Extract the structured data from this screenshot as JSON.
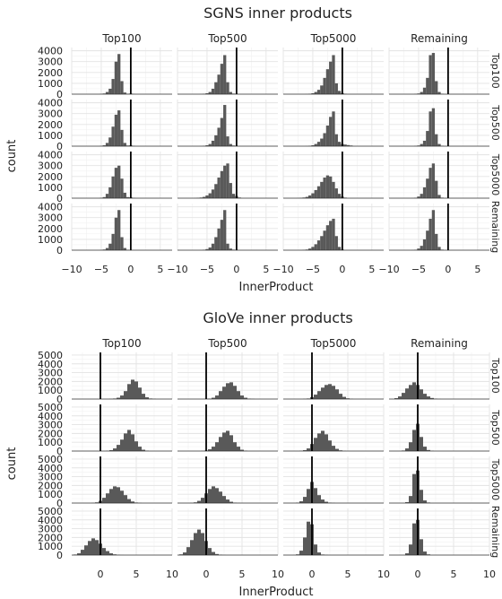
{
  "chart_data": [
    {
      "type": "bar",
      "title": "SGNS inner products",
      "xlabel": "InnerProduct",
      "ylabel": "count",
      "xlim": [
        -10,
        7
      ],
      "ylim": [
        0,
        4300
      ],
      "xticks": [
        -10,
        -5,
        0,
        5
      ],
      "yticks": [
        0,
        1000,
        2000,
        3000,
        4000
      ],
      "bin_width": 0.5,
      "vline": 0,
      "col_facets": [
        "Top100",
        "Top500",
        "Top5000",
        "Remaining"
      ],
      "row_facets": [
        "Top100",
        "Top500",
        "Top5000",
        "Remaining"
      ],
      "panels": [
        [
          {
            "centers": [
              -5,
              -4.5,
              -4,
              -3.5,
              -3,
              -2.5,
              -2,
              -1.5,
              -1,
              -0.5,
              0,
              0.5
            ],
            "values": [
              20,
              60,
              200,
              500,
              1400,
              3000,
              3700,
              1200,
              150,
              40,
              60,
              15
            ]
          },
          {
            "centers": [
              -6,
              -5.5,
              -5,
              -4.5,
              -4,
              -3.5,
              -3,
              -2.5,
              -2,
              -1.5,
              -1,
              -0.5,
              0
            ],
            "values": [
              10,
              30,
              80,
              200,
              500,
              1100,
              1800,
              2800,
              3600,
              1100,
              200,
              50,
              20
            ]
          },
          {
            "centers": [
              -6,
              -5.5,
              -5,
              -4.5,
              -4,
              -3.5,
              -3,
              -2.5,
              -2,
              -1.5,
              -1,
              -0.5,
              0,
              0.5
            ],
            "values": [
              10,
              30,
              80,
              200,
              400,
              800,
              1500,
              2300,
              3000,
              3600,
              1000,
              300,
              100,
              30
            ]
          },
          {
            "centers": [
              -5.5,
              -5,
              -4.5,
              -4,
              -3.5,
              -3,
              -2.5,
              -2,
              -1.5,
              -1
            ],
            "values": [
              20,
              60,
              200,
              600,
              1500,
              3600,
              3800,
              1200,
              200,
              30
            ]
          }
        ],
        [
          {
            "centers": [
              -5,
              -4.5,
              -4,
              -3.5,
              -3,
              -2.5,
              -2,
              -1.5,
              -1,
              -0.5,
              0,
              0.5
            ],
            "values": [
              20,
              80,
              300,
              800,
              1800,
              2900,
              3300,
              1500,
              300,
              60,
              80,
              20
            ]
          },
          {
            "centers": [
              -6,
              -5.5,
              -5,
              -4.5,
              -4,
              -3.5,
              -3,
              -2.5,
              -2,
              -1.5,
              -1,
              -0.5,
              0
            ],
            "values": [
              10,
              30,
              80,
              200,
              500,
              1000,
              1700,
              2600,
              3800,
              900,
              200,
              60,
              20
            ]
          },
          {
            "centers": [
              -6,
              -5.5,
              -5,
              -4.5,
              -4,
              -3.5,
              -3,
              -2.5,
              -2,
              -1.5,
              -1,
              -0.5,
              0,
              0.5,
              1,
              1.5
            ],
            "values": [
              10,
              30,
              80,
              200,
              400,
              700,
              1200,
              1900,
              2700,
              3200,
              1100,
              400,
              200,
              150,
              100,
              60
            ]
          },
          {
            "centers": [
              -5.5,
              -5,
              -4.5,
              -4,
              -3.5,
              -3,
              -2.5,
              -2,
              -1.5,
              -1
            ],
            "values": [
              20,
              60,
              200,
              500,
              1400,
              3200,
              3500,
              1100,
              200,
              30
            ]
          }
        ],
        [
          {
            "centers": [
              -5,
              -4.5,
              -4,
              -3.5,
              -3,
              -2.5,
              -2,
              -1.5,
              -1,
              -0.5,
              0,
              0.5
            ],
            "values": [
              30,
              100,
              400,
              1000,
              2000,
              2800,
              3000,
              1800,
              500,
              100,
              80,
              20
            ]
          },
          {
            "centers": [
              -7,
              -6.5,
              -6,
              -5.5,
              -5,
              -4.5,
              -4,
              -3.5,
              -3,
              -2.5,
              -2,
              -1.5,
              -1,
              -0.5,
              0,
              0.5
            ],
            "values": [
              10,
              30,
              60,
              120,
              250,
              450,
              800,
              1300,
              1900,
              2500,
              3000,
              3200,
              1400,
              400,
              200,
              60
            ]
          },
          {
            "centers": [
              -7.5,
              -7,
              -6.5,
              -6,
              -5.5,
              -5,
              -4.5,
              -4,
              -3.5,
              -3,
              -2.5,
              -2,
              -1.5,
              -1,
              -0.5,
              0,
              0.5
            ],
            "values": [
              10,
              30,
              60,
              120,
              250,
              450,
              750,
              1100,
              1500,
              1900,
              2100,
              2000,
              1500,
              900,
              400,
              150,
              50
            ]
          },
          {
            "centers": [
              -6,
              -5.5,
              -5,
              -4.5,
              -4,
              -3.5,
              -3,
              -2.5,
              -2,
              -1.5,
              -1
            ],
            "values": [
              10,
              40,
              150,
              400,
              1000,
              1800,
              2800,
              3200,
              1600,
              300,
              50
            ]
          }
        ],
        [
          {
            "centers": [
              -5,
              -4.5,
              -4,
              -3.5,
              -3,
              -2.5,
              -2,
              -1.5,
              -1,
              -0.5
            ],
            "values": [
              20,
              60,
              200,
              600,
              1500,
              3000,
              3700,
              1200,
              200,
              40
            ]
          },
          {
            "centers": [
              -6,
              -5.5,
              -5,
              -4.5,
              -4,
              -3.5,
              -3,
              -2.5,
              -2,
              -1.5,
              -1,
              -0.5,
              0
            ],
            "values": [
              10,
              40,
              100,
              250,
              600,
              1200,
              2000,
              2800,
              3700,
              600,
              150,
              50,
              20
            ]
          },
          {
            "centers": [
              -7,
              -6.5,
              -6,
              -5.5,
              -5,
              -4.5,
              -4,
              -3.5,
              -3,
              -2.5,
              -2,
              -1.5,
              -1,
              -0.5,
              0
            ],
            "values": [
              10,
              30,
              60,
              150,
              300,
              550,
              900,
              1300,
              1800,
              2300,
              2700,
              2900,
              1300,
              300,
              60
            ]
          },
          {
            "centers": [
              -6,
              -5.5,
              -5,
              -4.5,
              -4,
              -3.5,
              -3,
              -2.5,
              -2,
              -1.5,
              -1
            ],
            "values": [
              10,
              40,
              150,
              400,
              1000,
              1800,
              2900,
              3700,
              1500,
              300,
              50
            ]
          }
        ]
      ]
    },
    {
      "type": "bar",
      "title": "GloVe inner products",
      "xlabel": "InnerProduct",
      "ylabel": "count",
      "xlim": [
        -4,
        10
      ],
      "ylim": [
        0,
        5300
      ],
      "xticks": [
        0,
        5,
        10
      ],
      "yticks": [
        0,
        1000,
        2000,
        3000,
        4000,
        5000
      ],
      "bin_width": 0.5,
      "vline": 0,
      "col_facets": [
        "Top100",
        "Top500",
        "Top5000",
        "Remaining"
      ],
      "row_facets": [
        "Top100",
        "Top500",
        "Top5000",
        "Remaining"
      ],
      "panels": [
        [
          {
            "centers": [
              1.5,
              2,
              2.5,
              3,
              3.5,
              4,
              4.5,
              5,
              5.5,
              6,
              6.5,
              7,
              7.5
            ],
            "values": [
              20,
              60,
              150,
              400,
              900,
              1700,
              2200,
              2000,
              1300,
              600,
              200,
              60,
              20
            ]
          },
          {
            "centers": [
              0,
              0.5,
              1,
              1.5,
              2,
              2.5,
              3,
              3.5,
              4,
              4.5,
              5,
              5.5,
              6,
              6.5
            ],
            "values": [
              20,
              50,
              150,
              400,
              900,
              1400,
              1800,
              1900,
              1500,
              900,
              400,
              150,
              50,
              20
            ]
          },
          {
            "centers": [
              -1,
              -0.5,
              0,
              0.5,
              1,
              1.5,
              2,
              2.5,
              3,
              3.5,
              4,
              4.5,
              5,
              5.5
            ],
            "values": [
              20,
              60,
              200,
              500,
              900,
              1300,
              1600,
              1700,
              1500,
              1100,
              600,
              250,
              80,
              20
            ]
          },
          {
            "centers": [
              -3,
              -2.5,
              -2,
              -1.5,
              -1,
              -0.5,
              0,
              0.5,
              1,
              1.5,
              2,
              2.5,
              3
            ],
            "values": [
              100,
              300,
              700,
              1200,
              1600,
              1900,
              1600,
              1100,
              600,
              300,
              120,
              40,
              10
            ]
          }
        ],
        [
          {
            "centers": [
              1,
              1.5,
              2,
              2.5,
              3,
              3.5,
              4,
              4.5,
              5,
              5.5,
              6,
              6.5
            ],
            "values": [
              30,
              100,
              300,
              700,
              1300,
              2000,
              2400,
              1900,
              1100,
              500,
              150,
              40
            ]
          },
          {
            "centers": [
              -0.5,
              0,
              0.5,
              1,
              1.5,
              2,
              2.5,
              3,
              3.5,
              4,
              4.5,
              5,
              5.5
            ],
            "values": [
              20,
              60,
              200,
              500,
              1000,
              1600,
              2100,
              2300,
              1800,
              1000,
              500,
              150,
              40
            ]
          },
          {
            "centers": [
              -1.5,
              -1,
              -0.5,
              0,
              0.5,
              1,
              1.5,
              2,
              2.5,
              3,
              3.5,
              4,
              4.5
            ],
            "values": [
              30,
              100,
              300,
              800,
              1500,
              2000,
              2300,
              1900,
              1200,
              600,
              250,
              80,
              20
            ]
          },
          {
            "centers": [
              -2,
              -1.5,
              -1,
              -0.5,
              0,
              0.5,
              1,
              1.5,
              2
            ],
            "values": [
              60,
              300,
              1000,
              2400,
              3100,
              1600,
              500,
              120,
              30
            ]
          }
        ],
        [
          {
            "centers": [
              -1,
              -0.5,
              0,
              0.5,
              1,
              1.5,
              2,
              2.5,
              3,
              3.5,
              4,
              4.5,
              5,
              5.5
            ],
            "values": [
              20,
              80,
              250,
              600,
              1100,
              1600,
              1900,
              1800,
              1400,
              900,
              450,
              180,
              60,
              20
            ]
          },
          {
            "centers": [
              -2,
              -1.5,
              -1,
              -0.5,
              0,
              0.5,
              1,
              1.5,
              2,
              2.5,
              3,
              3.5,
              4,
              4.5
            ],
            "values": [
              20,
              80,
              250,
              600,
              1100,
              1600,
              1900,
              1700,
              1300,
              800,
              400,
              150,
              50,
              20
            ]
          },
          {
            "centers": [
              -2,
              -1.5,
              -1,
              -0.5,
              0,
              0.5,
              1,
              1.5,
              2,
              2.5,
              3
            ],
            "values": [
              50,
              200,
              700,
              1600,
              2400,
              1700,
              900,
              400,
              150,
              50,
              20
            ]
          },
          {
            "centers": [
              -1.5,
              -1,
              -0.5,
              0,
              0.5,
              1,
              1.5
            ],
            "values": [
              100,
              800,
              3300,
              3700,
              1500,
              300,
              60
            ]
          }
        ],
        [
          {
            "centers": [
              -3.5,
              -3,
              -2.5,
              -2,
              -1.5,
              -1,
              -0.5,
              0,
              0.5,
              1,
              1.5,
              2,
              2.5,
              3
            ],
            "values": [
              60,
              200,
              600,
              1100,
              1600,
              1900,
              1700,
              1300,
              800,
              450,
              200,
              80,
              30,
              10
            ]
          },
          {
            "centers": [
              -3.5,
              -3,
              -2.5,
              -2,
              -1.5,
              -1,
              -0.5,
              0,
              0.5,
              1,
              1.5,
              2,
              2.5
            ],
            "values": [
              80,
              300,
              900,
              1700,
              2500,
              2900,
              2500,
              1600,
              800,
              350,
              120,
              40,
              10
            ]
          },
          {
            "centers": [
              -2,
              -1.5,
              -1,
              -0.5,
              0,
              0.5,
              1,
              1.5,
              2
            ],
            "values": [
              80,
              500,
              2000,
              3800,
              3500,
              1200,
              300,
              60,
              20
            ]
          },
          {
            "centers": [
              -1.5,
              -1,
              -0.5,
              0,
              0.5,
              1,
              1.5
            ],
            "values": [
              200,
              1200,
              3600,
              4000,
              1800,
              400,
              80
            ]
          }
        ]
      ]
    }
  ]
}
